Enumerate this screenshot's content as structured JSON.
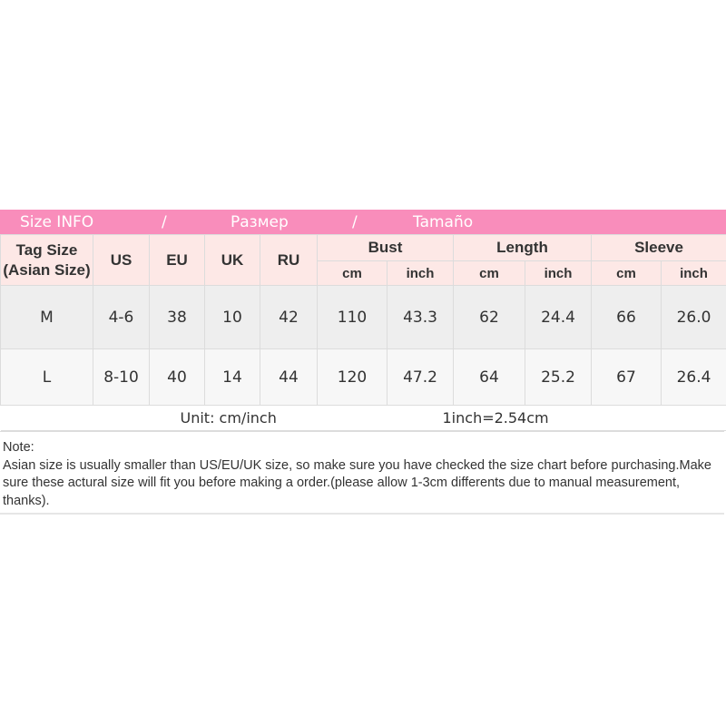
{
  "banner": {
    "size_info": "Size INFO",
    "sep1": "/",
    "russian": "Размер",
    "sep2": "/",
    "spanish": "Tamaño",
    "color": "#f98dbb"
  },
  "header": {
    "tag_size": "Tag Size",
    "asian_size": "(Asian Size)",
    "us": "US",
    "eu": "EU",
    "uk": "UK",
    "ru": "RU",
    "bust": "Bust",
    "length": "Length",
    "sleeve": "Sleeve",
    "cm": "cm",
    "inch": "inch"
  },
  "rows": [
    {
      "tag": "M",
      "us": "4-6",
      "eu": "38",
      "uk": "10",
      "ru": "42",
      "bust_cm": "110",
      "bust_inch": "43.3",
      "length_cm": "62",
      "length_inch": "24.4",
      "sleeve_cm": "66",
      "sleeve_inch": "26.0"
    },
    {
      "tag": "L",
      "us": "8-10",
      "eu": "40",
      "uk": "14",
      "ru": "44",
      "bust_cm": "120",
      "bust_inch": "47.2",
      "length_cm": "64",
      "length_inch": "25.2",
      "sleeve_cm": "67",
      "sleeve_inch": "26.4"
    }
  ],
  "unit": {
    "label": "Unit: cm/inch",
    "conversion": "1inch=2.54cm"
  },
  "note": {
    "title": "Note:",
    "text": "Asian size is usually smaller than US/EU/UK size, so make sure you have checked the size chart before purchasing.Make sure these actural size will fit you before making a order.(please allow 1-3cm differents due to manual measurement, thanks)."
  }
}
